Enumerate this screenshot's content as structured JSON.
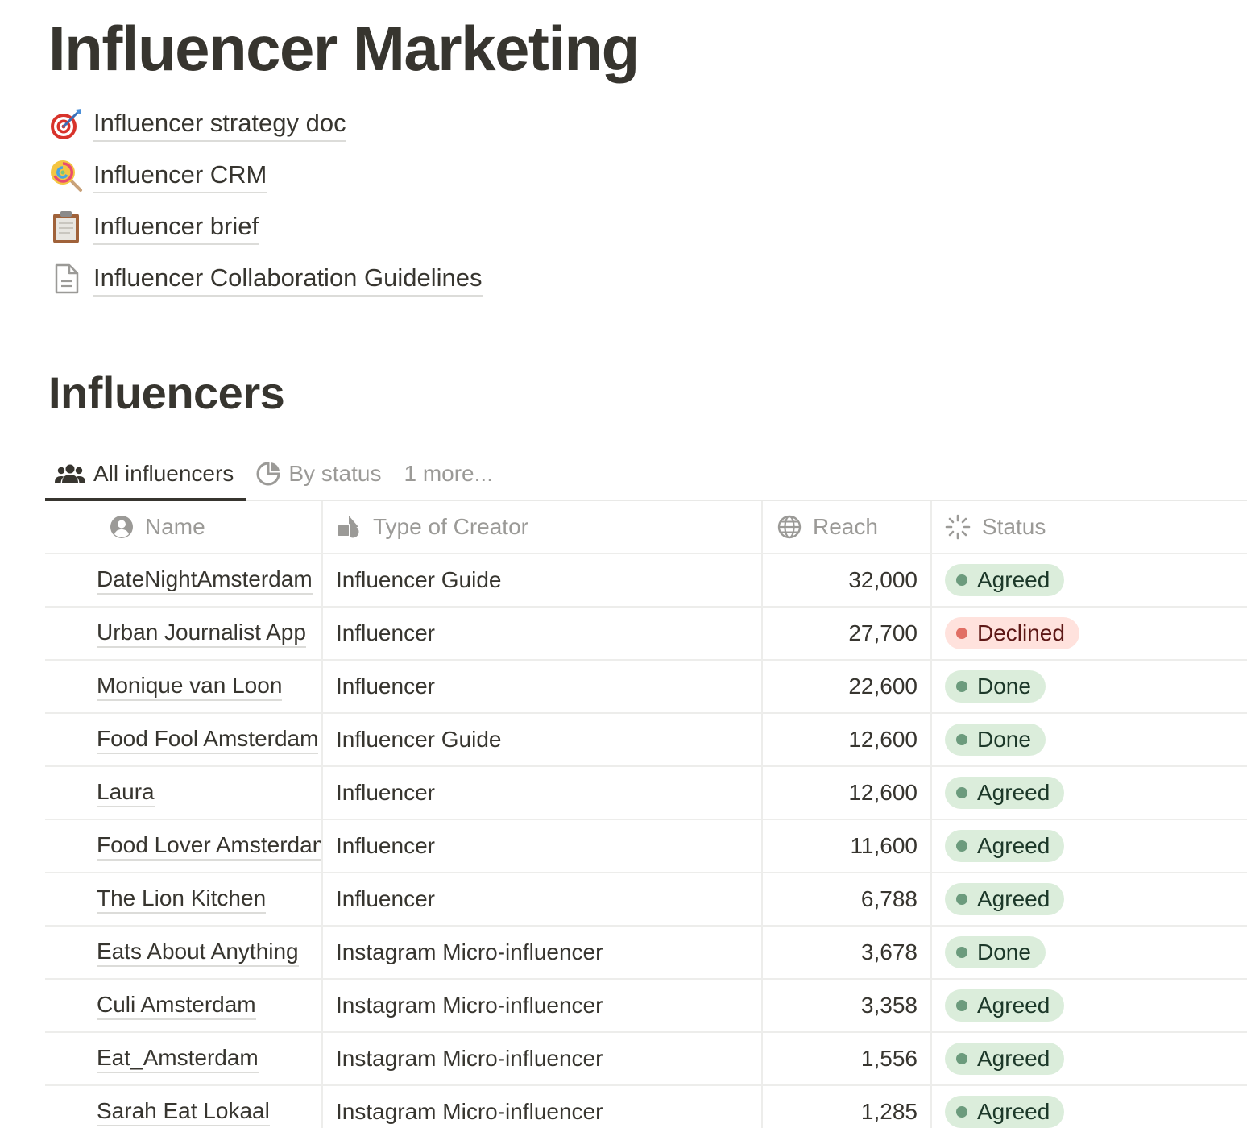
{
  "page": {
    "title": "Influencer Marketing"
  },
  "links": [
    {
      "label": "Influencer strategy doc",
      "icon": "target-dart-icon"
    },
    {
      "label": "Influencer CRM",
      "icon": "lollipop-icon"
    },
    {
      "label": "Influencer brief",
      "icon": "clipboard-icon"
    },
    {
      "label": "Influencer Collaboration Guidelines",
      "icon": "document-icon"
    }
  ],
  "database": {
    "title": "Influencers",
    "views": [
      {
        "label": "All influencers",
        "icon": "people-icon",
        "active": true
      },
      {
        "label": "By status",
        "icon": "pie-chart-icon",
        "active": false
      },
      {
        "label": "1 more...",
        "icon": "",
        "active": false
      }
    ],
    "columns": {
      "name": "Name",
      "type": "Type of Creator",
      "reach": "Reach",
      "status": "Status"
    },
    "status_colors": {
      "Agreed": "#dbeddb",
      "Done": "#dbeddb",
      "Declined": "#ffe2dd"
    },
    "rows": [
      {
        "name": "DateNightAmsterdam",
        "type": "Influencer Guide",
        "reach": "32,000",
        "status": "Agreed"
      },
      {
        "name": "Urban Journalist App",
        "type": "Influencer",
        "reach": "27,700",
        "status": "Declined"
      },
      {
        "name": "Monique van Loon",
        "type": "Influencer",
        "reach": "22,600",
        "status": "Done"
      },
      {
        "name": "Food Fool Amsterdam",
        "type": "Influencer Guide",
        "reach": "12,600",
        "status": "Done"
      },
      {
        "name": "Laura",
        "type": "Influencer",
        "reach": "12,600",
        "status": "Agreed"
      },
      {
        "name": "Food Lover Amsterdam",
        "type": "Influencer",
        "reach": "11,600",
        "status": "Agreed"
      },
      {
        "name": "The Lion Kitchen",
        "type": "Influencer",
        "reach": "6,788",
        "status": "Agreed"
      },
      {
        "name": "Eats About Anything",
        "type": "Instagram Micro-influencer",
        "reach": "3,678",
        "status": "Done"
      },
      {
        "name": "Culi Amsterdam",
        "type": "Instagram Micro-influencer",
        "reach": "3,358",
        "status": "Agreed"
      },
      {
        "name": "Eat_Amsterdam",
        "type": "Instagram Micro-influencer",
        "reach": "1,556",
        "status": "Agreed"
      },
      {
        "name": "Sarah Eat Lokaal",
        "type": "Instagram Micro-influencer",
        "reach": "1,285",
        "status": "Agreed"
      }
    ]
  }
}
